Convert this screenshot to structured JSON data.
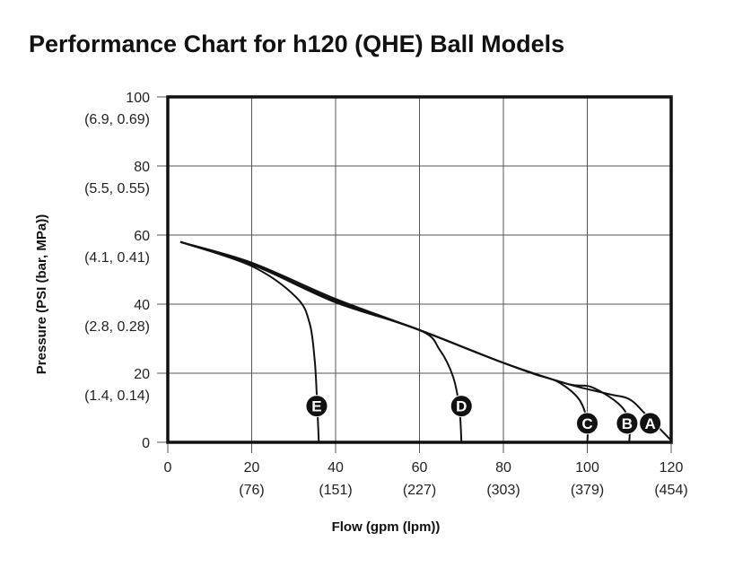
{
  "chart_data": {
    "type": "line",
    "title": "Performance Chart for h120 (QHE) Ball Models",
    "xlabel": "Flow (gpm (lpm))",
    "ylabel": "Pressure (PSI (bar, MPa))",
    "xlim": [
      0,
      120
    ],
    "ylim": [
      0,
      100
    ],
    "grid": true,
    "x_ticks": [
      {
        "value": 0,
        "label": "0",
        "sub": ""
      },
      {
        "value": 20,
        "label": "20",
        "sub": "(76)"
      },
      {
        "value": 40,
        "label": "40",
        "sub": "(151)"
      },
      {
        "value": 60,
        "label": "60",
        "sub": "(227)"
      },
      {
        "value": 80,
        "label": "80",
        "sub": "(303)"
      },
      {
        "value": 100,
        "label": "100",
        "sub": "(379)"
      },
      {
        "value": 120,
        "label": "120",
        "sub": "(454)"
      }
    ],
    "y_ticks": [
      {
        "value": 0,
        "label": "0",
        "sub": ""
      },
      {
        "value": 20,
        "label": "20",
        "sub": "(1.4, 0.14)"
      },
      {
        "value": 40,
        "label": "40",
        "sub": "(2.8, 0.28)"
      },
      {
        "value": 60,
        "label": "60",
        "sub": "(4.1, 0.41)"
      },
      {
        "value": 80,
        "label": "80",
        "sub": "(5.5, 0.55)"
      },
      {
        "value": 100,
        "label": "100",
        "sub": "(6.9, 0.69)"
      }
    ],
    "series": [
      {
        "name": "A",
        "points": [
          [
            3,
            58
          ],
          [
            20,
            52
          ],
          [
            40,
            41.5
          ],
          [
            60,
            32.5
          ],
          [
            80,
            23
          ],
          [
            95,
            17
          ],
          [
            105,
            14
          ],
          [
            110,
            12.5
          ],
          [
            114,
            8
          ],
          [
            120,
            0.5
          ]
        ]
      },
      {
        "name": "B",
        "points": [
          [
            3,
            58
          ],
          [
            20,
            51.5
          ],
          [
            40,
            41
          ],
          [
            60,
            32.5
          ],
          [
            80,
            23
          ],
          [
            95,
            17
          ],
          [
            101,
            16
          ],
          [
            107.6,
            11
          ],
          [
            110,
            6
          ],
          [
            110,
            0
          ]
        ]
      },
      {
        "name": "C",
        "points": [
          [
            3,
            58
          ],
          [
            20,
            51.5
          ],
          [
            40,
            41
          ],
          [
            60,
            32.5
          ],
          [
            80,
            23
          ],
          [
            88,
            19.5
          ],
          [
            93,
            17.5
          ],
          [
            98,
            12.5
          ],
          [
            100,
            6
          ],
          [
            100,
            0
          ]
        ]
      },
      {
        "name": "D",
        "points": [
          [
            3,
            58
          ],
          [
            20,
            51.5
          ],
          [
            40,
            40.5
          ],
          [
            60,
            32.5
          ],
          [
            64.8,
            26.8
          ],
          [
            68,
            19
          ],
          [
            69.5,
            10
          ],
          [
            70,
            0
          ]
        ]
      },
      {
        "name": "E",
        "points": [
          [
            3,
            58
          ],
          [
            20,
            51
          ],
          [
            30.6,
            42
          ],
          [
            33.8,
            34.5
          ],
          [
            35,
            24
          ],
          [
            35.5,
            14
          ],
          [
            36,
            0
          ]
        ]
      }
    ],
    "label_positions": {
      "A": [
        115,
        5.5
      ],
      "B": [
        109.5,
        5.5
      ],
      "C": [
        100,
        5.5
      ],
      "D": [
        70,
        10.5
      ],
      "E": [
        35.5,
        10.5
      ]
    }
  }
}
